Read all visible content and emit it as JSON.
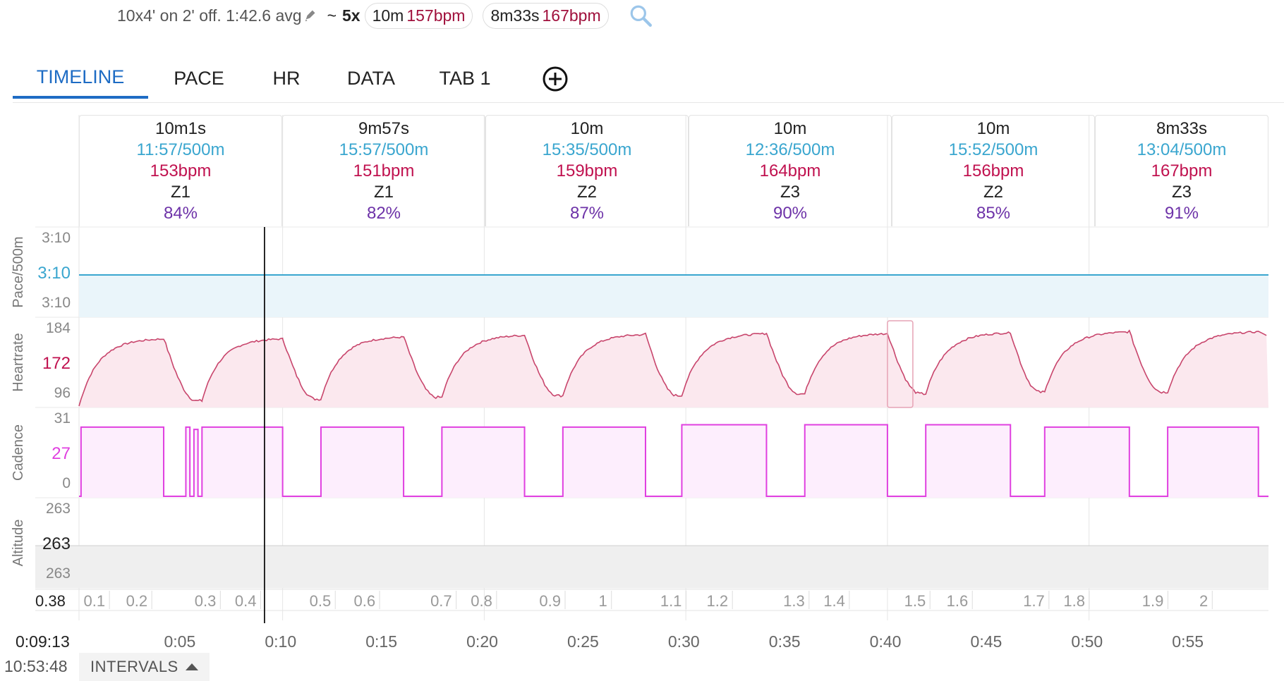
{
  "summary": {
    "description": "10x4' on 2' off. 1:42.6 avg",
    "tilde": "~",
    "reps": "5x",
    "pill1": {
      "duration": "10m",
      "hr": "157bpm"
    },
    "pill2": {
      "duration": "8m33s",
      "hr": "167bpm"
    }
  },
  "tabs": [
    {
      "label": "TIMELINE",
      "active": true
    },
    {
      "label": "PACE",
      "active": false
    },
    {
      "label": "HR",
      "active": false
    },
    {
      "label": "DATA",
      "active": false
    },
    {
      "label": "TAB 1",
      "active": false
    }
  ],
  "intervals": [
    {
      "duration": "10m1s",
      "pace": "11:57/500m",
      "hr": "153bpm",
      "zone": "Z1",
      "pct": "84%"
    },
    {
      "duration": "9m57s",
      "pace": "15:57/500m",
      "hr": "151bpm",
      "zone": "Z1",
      "pct": "82%"
    },
    {
      "duration": "10m",
      "pace": "15:35/500m",
      "hr": "159bpm",
      "zone": "Z2",
      "pct": "87%"
    },
    {
      "duration": "10m",
      "pace": "12:36/500m",
      "hr": "164bpm",
      "zone": "Z3",
      "pct": "90%"
    },
    {
      "duration": "10m",
      "pace": "15:52/500m",
      "hr": "156bpm",
      "zone": "Z2",
      "pct": "85%"
    },
    {
      "duration": "8m33s",
      "pace": "13:04/500m",
      "hr": "167bpm",
      "zone": "Z3",
      "pct": "91%"
    }
  ],
  "footer": {
    "elapsed": "0:09:13",
    "clock": "10:53:48",
    "intervals_button": "INTERVALS"
  },
  "colors": {
    "accent": "#1e6cc4",
    "pace": "#3aa6cf",
    "hr": "#c0114f",
    "cadence": "#e040e0",
    "zone_pct": "#6d32a8"
  },
  "chart_data": {
    "type": "line",
    "x_unit": "minutes",
    "x_range": [
      0,
      59
    ],
    "x_ticks": [
      "0:05",
      "0:10",
      "0:15",
      "0:20",
      "0:25",
      "0:30",
      "0:35",
      "0:40",
      "0:45",
      "0:50",
      "0:55"
    ],
    "cursor_x": 9.2,
    "panels": [
      {
        "name": "pace",
        "ylabel": "Pace/500m",
        "ticks": [
          "3:10",
          "3:10",
          "3:10"
        ],
        "current": "3:10"
      },
      {
        "name": "heartrate",
        "ylabel": "Heartrate",
        "ticks": [
          "184",
          "172",
          "96"
        ],
        "current": "172",
        "ylim": [
          96,
          190
        ]
      },
      {
        "name": "cadence",
        "ylabel": "Cadence",
        "ticks": [
          "31",
          "27",
          "0"
        ],
        "current": "27",
        "ylim": [
          0,
          33
        ]
      },
      {
        "name": "altitude",
        "ylabel": "Altitude",
        "ticks": [
          "263",
          "263",
          "263"
        ],
        "current": "263"
      }
    ],
    "work_periods": [
      [
        0.1,
        4.2
      ],
      [
        5.3,
        5.5
      ],
      [
        5.7,
        5.9
      ],
      [
        6.1,
        10.1
      ],
      [
        12.0,
        16.1
      ],
      [
        18.0,
        22.1
      ],
      [
        24.0,
        28.1
      ],
      [
        29.9,
        34.1
      ],
      [
        36.0,
        40.1
      ],
      [
        42.0,
        46.2
      ],
      [
        47.9,
        52.1
      ],
      [
        54.0,
        58.5
      ]
    ],
    "cadence_levels": [
      30,
      30,
      29,
      30,
      30,
      30,
      30,
      31,
      31,
      31,
      30,
      30
    ],
    "hr_peaks": [
      174,
      174,
      176,
      178,
      179,
      180,
      180,
      181,
      182,
      182,
      182,
      183
    ],
    "hr_troughs": [
      100,
      102,
      104,
      106,
      108,
      108,
      110,
      110,
      112,
      112,
      112,
      112
    ],
    "distance_row": {
      "current": "0.38",
      "labels": [
        "0.1",
        "0.2",
        "0.3",
        "0.4",
        "0.5",
        "0.6",
        "0.7",
        "0.8",
        "0.9",
        "1",
        "1.1",
        "1.2",
        "1.3",
        "1.4",
        "1.5",
        "1.6",
        "1.7",
        "1.8",
        "1.9",
        "2"
      ],
      "positions_min": [
        1.3,
        3.4,
        6.8,
        8.8,
        12.5,
        14.7,
        18.5,
        20.5,
        23.9,
        26.2,
        29.9,
        32.2,
        36.0,
        38.0,
        42.0,
        44.1,
        47.9,
        49.9,
        53.8,
        56.0
      ]
    }
  }
}
